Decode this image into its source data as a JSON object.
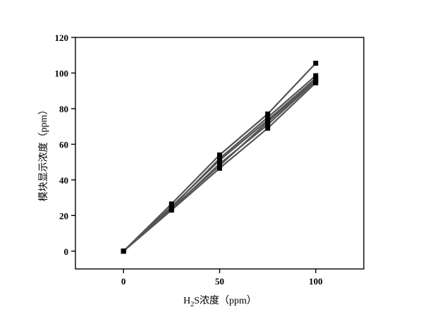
{
  "chart_data": {
    "type": "line",
    "xlabel_main": "H",
    "xlabel_sub": "2",
    "xlabel_rest": "S浓度（ppm）",
    "ylabel": "模块显示浓度（ppm）",
    "xlim": [
      -25,
      125
    ],
    "ylim": [
      -10,
      120
    ],
    "xticks": [
      0,
      50,
      100
    ],
    "yticks": [
      0,
      20,
      40,
      60,
      80,
      100,
      120
    ],
    "grid": false,
    "x": [
      0,
      25,
      50,
      75,
      100
    ],
    "series": [
      {
        "values": [
          0,
          26.5,
          54.0,
          77.0,
          105.5
        ]
      },
      {
        "values": [
          0,
          24.5,
          52.0,
          75.0,
          98.5
        ]
      },
      {
        "values": [
          0,
          25.0,
          51.0,
          73.5,
          97.0
        ]
      },
      {
        "values": [
          0,
          23.5,
          49.0,
          71.0,
          95.5
        ]
      },
      {
        "values": [
          0,
          23.0,
          46.5,
          69.0,
          94.5
        ]
      },
      {
        "values": [
          0,
          24.0,
          48.0,
          72.5,
          96.0
        ]
      }
    ],
    "line_color": "#555555",
    "marker_color": "#000000"
  }
}
